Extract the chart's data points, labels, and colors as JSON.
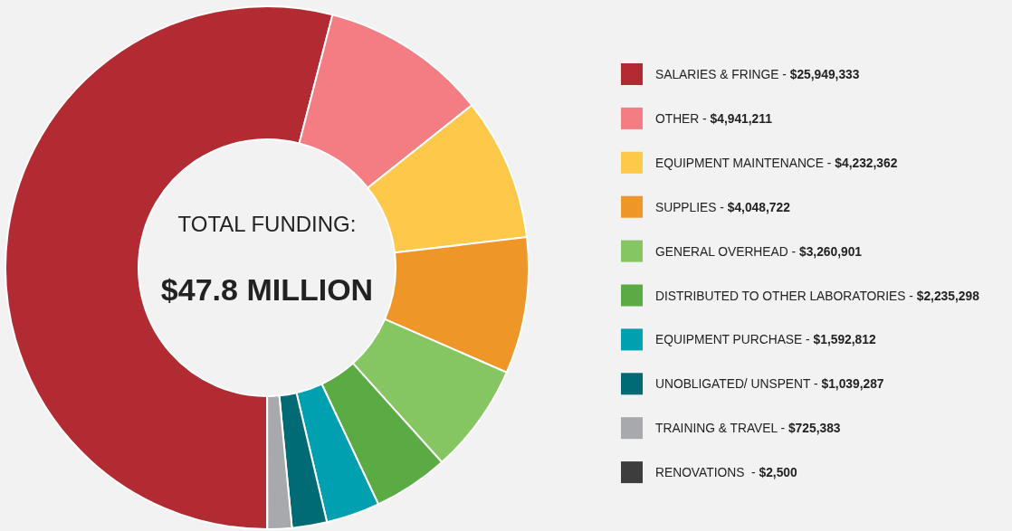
{
  "chart_data": {
    "type": "donut",
    "categories": [
      "SALARIES & FRINGE - $25,949,333",
      "OTHER - $4,941,211",
      "EQUIPMENT MAINTENANCE - $4,232,362",
      "SUPPLIES - $4,048,722",
      "GENERAL OVERHEAD - $3,260,901",
      "DISTRIBUTED TO OTHER LABORATORIES - $2,235,298",
      "EQUIPMENT PURCHASE - $1,592,812",
      "UNOBLIGATED/ UNSPENT - $1,039,287",
      "TRAINING & TRAVEL - $725,383",
      "RENOVATIONS  - $2,500"
    ],
    "values": [
      54.03,
      10.29,
      8.81,
      8.43,
      6.79,
      4.65,
      3.32,
      2.16,
      1.51,
      0.01
    ],
    "colors": [
      "#b22a32",
      "#f47c83",
      "#fec84a",
      "#ee9628",
      "#86c662",
      "#5aab44",
      "#00a0b0",
      "#006b74",
      "#a8a9ac",
      "#3d3d3d"
    ],
    "annotations": [
      "TOTAL FUNDING:",
      "$47.8 MILLION"
    ],
    "legend": "right"
  }
}
